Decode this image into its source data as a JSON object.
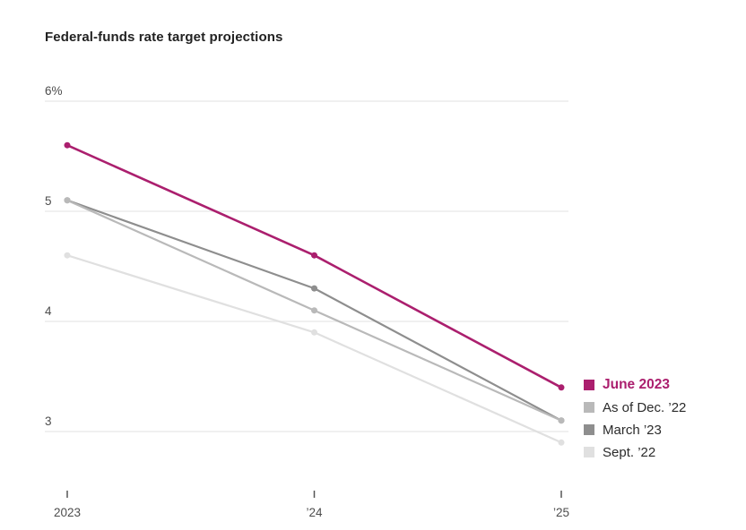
{
  "title": "Federal-funds rate target projections",
  "colors": {
    "accent_magenta": "#ab1f6e",
    "gridline": "#ececec",
    "axis_text": "#4d4d4d",
    "tick_mark": "#555555",
    "title_text": "#222222",
    "legend_text": "#2b2b2b",
    "background": "#ffffff"
  },
  "chart_data": {
    "type": "line",
    "title": "Federal-funds rate target projections",
    "categories": [
      "2023",
      "’24",
      "’25"
    ],
    "series": [
      {
        "name": "June 2023",
        "values": [
          5.6,
          4.6,
          3.4
        ],
        "color": "#ab1f6e",
        "emphasis": true
      },
      {
        "name": "As of Dec. ’22",
        "values": [
          5.1,
          4.1,
          3.1
        ],
        "color": "#b9b9b9",
        "emphasis": false
      },
      {
        "name": "March ’23",
        "values": [
          5.1,
          4.3,
          3.1
        ],
        "color": "#8e8e8e",
        "emphasis": false
      },
      {
        "name": "Sept. ’22",
        "values": [
          4.6,
          3.9,
          2.9
        ],
        "color": "#e0e0e0",
        "emphasis": false
      }
    ],
    "yticks": [
      {
        "value": 6,
        "label": "6%"
      },
      {
        "value": 5,
        "label": "5"
      },
      {
        "value": 4,
        "label": "4"
      },
      {
        "value": 3,
        "label": "3"
      }
    ],
    "ylim": [
      2.75,
      6.1
    ],
    "xlabel": "",
    "ylabel": "",
    "grid": true,
    "legend_position": "right",
    "markers": true
  }
}
